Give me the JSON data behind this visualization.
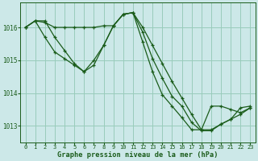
{
  "background_color": "#cce8e8",
  "grid_color": "#99ccbb",
  "line_color": "#1a5c1a",
  "title": "Graphe pression niveau de la mer (hPa)",
  "xlim": [
    -0.5,
    23.5
  ],
  "ylim": [
    1012.5,
    1016.75
  ],
  "yticks": [
    1013,
    1014,
    1015,
    1016
  ],
  "xticks": [
    0,
    1,
    2,
    3,
    4,
    5,
    6,
    7,
    8,
    9,
    10,
    11,
    12,
    13,
    14,
    15,
    16,
    17,
    18,
    19,
    20,
    21,
    22,
    23
  ],
  "series": [
    {
      "x": [
        0,
        1,
        2,
        3,
        4,
        5,
        6,
        7,
        8,
        9,
        10,
        11,
        12,
        13,
        14,
        15,
        16,
        17,
        18,
        19,
        20,
        21,
        22,
        23
      ],
      "y": [
        1016.0,
        1016.2,
        1016.2,
        1015.7,
        1015.3,
        1014.9,
        1014.65,
        1014.85,
        1015.45,
        1016.05,
        1016.4,
        1016.45,
        1015.85,
        1015.05,
        1014.45,
        1013.9,
        1013.6,
        1013.1,
        1012.85,
        1012.85,
        1013.05,
        1013.2,
        1013.55,
        1013.6
      ]
    },
    {
      "x": [
        0,
        1,
        2,
        3,
        4,
        5,
        6,
        7,
        8,
        9,
        10,
        11,
        12,
        13,
        14,
        15,
        16,
        17,
        18,
        19,
        20,
        21,
        22,
        23
      ],
      "y": [
        1016.0,
        1016.2,
        1016.15,
        1016.0,
        1016.0,
        1016.0,
        1016.0,
        1016.0,
        1016.05,
        1016.05,
        1016.4,
        1016.45,
        1016.0,
        1015.45,
        1014.9,
        1014.35,
        1013.85,
        1013.35,
        1012.88,
        1012.88,
        1013.05,
        1013.2,
        1013.35,
        1013.55
      ]
    },
    {
      "x": [
        0,
        1,
        2,
        3,
        4,
        5,
        6,
        7,
        8,
        9,
        10,
        11,
        12,
        13,
        14,
        15,
        16,
        17,
        18,
        19,
        20,
        21,
        22,
        23
      ],
      "y": [
        1016.0,
        1016.2,
        1015.7,
        1015.25,
        1015.05,
        1014.85,
        1014.65,
        1015.0,
        1015.45,
        1016.05,
        1016.4,
        1016.45,
        1015.55,
        1014.65,
        1013.95,
        1013.6,
        1013.25,
        1012.88,
        1012.88,
        1013.6,
        1013.6,
        1013.5,
        1013.4,
        1013.55
      ]
    }
  ]
}
